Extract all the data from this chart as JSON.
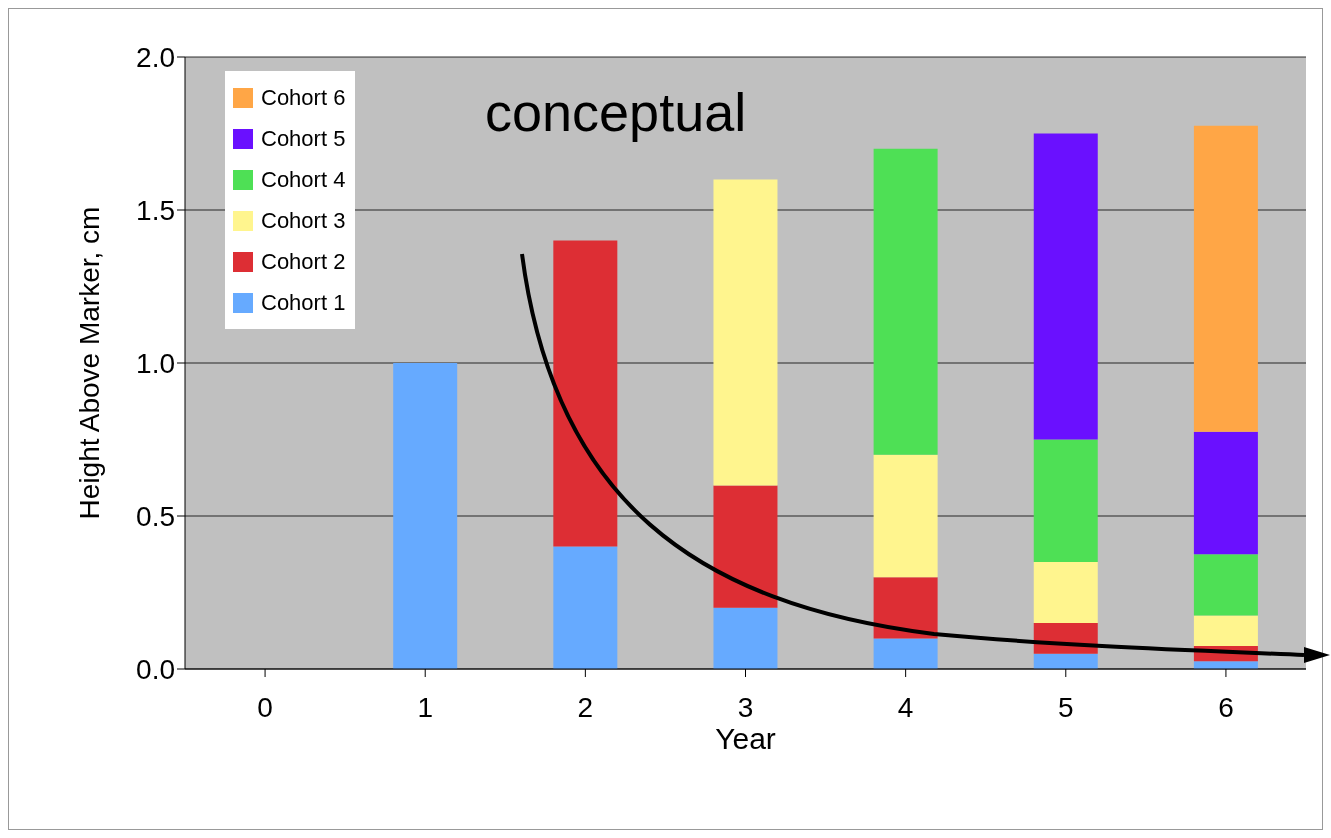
{
  "chart_data": {
    "type": "bar",
    "stacked": true,
    "categories": [
      "0",
      "1",
      "2",
      "3",
      "4",
      "5",
      "6"
    ],
    "xlabel": "Year",
    "ylabel": "Height Above Marker, cm",
    "ylim": [
      0,
      2
    ],
    "yticks": [
      {
        "value": 0,
        "label": "0.0"
      },
      {
        "value": 0.5,
        "label": "0.5"
      },
      {
        "value": 1,
        "label": "1.0"
      },
      {
        "value": 1.5,
        "label": "1.5"
      },
      {
        "value": 2,
        "label": "2.0"
      }
    ],
    "grid": "y",
    "legend": "top left",
    "annotations": [
      "conceptual"
    ],
    "series": [
      {
        "name": "Cohort 1",
        "color": "#66aaff",
        "values": [
          null,
          1.0,
          0.4,
          0.2,
          0.1,
          0.05,
          0.025
        ]
      },
      {
        "name": "Cohort 2",
        "color": "#dd2e34",
        "values": [
          null,
          null,
          1.0,
          0.4,
          0.2,
          0.1,
          0.05
        ]
      },
      {
        "name": "Cohort 3",
        "color": "#fff58e",
        "values": [
          null,
          null,
          null,
          1.0,
          0.4,
          0.2,
          0.1
        ]
      },
      {
        "name": "Cohort 4",
        "color": "#4ee055",
        "values": [
          null,
          null,
          null,
          null,
          1.0,
          0.4,
          0.2
        ]
      },
      {
        "name": "Cohort 5",
        "color": "#6a10ff",
        "values": [
          null,
          null,
          null,
          null,
          null,
          1.0,
          0.4
        ]
      },
      {
        "name": "Cohort 6",
        "color": "#ffa646",
        "values": [
          null,
          null,
          null,
          null,
          null,
          null,
          1.0
        ]
      }
    ]
  }
}
